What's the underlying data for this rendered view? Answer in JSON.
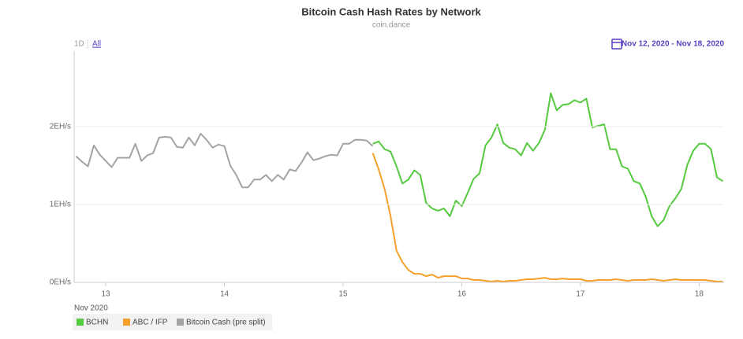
{
  "chart_data": {
    "type": "line",
    "title": "Bitcoin Cash Hash Rates by Network",
    "subtitle": "coin.dance",
    "range_buttons": [
      "1D",
      "All"
    ],
    "date_range": "Nov 12, 2020 - Nov 18, 2020",
    "x_label": "Nov 2020",
    "x": [
      12.75,
      12.8,
      12.85,
      12.9,
      12.95,
      13.0,
      13.05,
      13.1,
      13.15,
      13.2,
      13.25,
      13.3,
      13.35,
      13.4,
      13.45,
      13.5,
      13.55,
      13.6,
      13.65,
      13.7,
      13.75,
      13.8,
      13.85,
      13.9,
      13.95,
      14.0,
      14.05,
      14.1,
      14.15,
      14.2,
      14.25,
      14.3,
      14.35,
      14.4,
      14.45,
      14.5,
      14.55,
      14.6,
      14.65,
      14.7,
      14.75,
      14.8,
      14.85,
      14.9,
      14.95,
      15.0,
      15.05,
      15.1,
      15.15,
      15.2,
      15.25,
      15.3,
      15.35,
      15.4,
      15.45,
      15.5,
      15.55,
      15.6,
      15.65,
      15.7,
      15.75,
      15.8,
      15.85,
      15.9,
      15.95,
      16.0,
      16.05,
      16.1,
      16.15,
      16.2,
      16.25,
      16.3,
      16.35,
      16.4,
      16.45,
      16.5,
      16.55,
      16.6,
      16.65,
      16.7,
      16.75,
      16.8,
      16.85,
      16.9,
      16.95,
      17.0,
      17.05,
      17.1,
      17.15,
      17.2,
      17.25,
      17.3,
      17.35,
      17.4,
      17.45,
      17.5,
      17.55,
      17.6,
      17.65,
      17.7,
      17.75,
      17.8,
      17.85,
      17.9,
      17.95,
      18.0,
      18.05,
      18.1,
      18.15,
      18.2
    ],
    "series": [
      {
        "name": "BCHN",
        "color": "#55c93f",
        "values": [
          null,
          null,
          null,
          null,
          null,
          null,
          null,
          null,
          null,
          null,
          null,
          null,
          null,
          null,
          null,
          null,
          null,
          null,
          null,
          null,
          null,
          null,
          null,
          null,
          null,
          null,
          null,
          null,
          null,
          null,
          null,
          null,
          null,
          null,
          null,
          null,
          null,
          null,
          null,
          null,
          null,
          null,
          null,
          null,
          null,
          null,
          null,
          null,
          null,
          null,
          1.78,
          1.81,
          1.71,
          1.68,
          1.49,
          1.27,
          1.32,
          1.44,
          1.38,
          1.02,
          0.95,
          0.92,
          0.95,
          0.85,
          1.05,
          0.98,
          1.15,
          1.33,
          1.4,
          1.76,
          1.86,
          2.03,
          1.79,
          1.73,
          1.71,
          1.63,
          1.79,
          1.69,
          1.79,
          1.96,
          2.43,
          2.21,
          2.28,
          2.29,
          2.34,
          2.31,
          2.36,
          1.99,
          2.01,
          2.03,
          1.71,
          1.71,
          1.49,
          1.46,
          1.3,
          1.27,
          1.1,
          0.85,
          0.72,
          0.8,
          0.98,
          1.08,
          1.2,
          1.51,
          1.69,
          1.78,
          1.78,
          1.71,
          1.35,
          1.3
        ]
      },
      {
        "name": "ABC / IFP",
        "color": "#f5a02a",
        "values": [
          null,
          null,
          null,
          null,
          null,
          null,
          null,
          null,
          null,
          null,
          null,
          null,
          null,
          null,
          null,
          null,
          null,
          null,
          null,
          null,
          null,
          null,
          null,
          null,
          null,
          null,
          null,
          null,
          null,
          null,
          null,
          null,
          null,
          null,
          null,
          null,
          null,
          null,
          null,
          null,
          null,
          null,
          null,
          null,
          null,
          null,
          null,
          null,
          null,
          null,
          1.66,
          1.45,
          1.2,
          0.85,
          0.41,
          0.26,
          0.16,
          0.11,
          0.11,
          0.08,
          0.1,
          0.06,
          0.08,
          0.08,
          0.08,
          0.05,
          0.05,
          0.03,
          0.03,
          0.02,
          0.01,
          0.02,
          0.01,
          0.02,
          0.02,
          0.03,
          0.04,
          0.04,
          0.05,
          0.06,
          0.04,
          0.04,
          0.05,
          0.04,
          0.04,
          0.04,
          0.02,
          0.02,
          0.03,
          0.03,
          0.03,
          0.04,
          0.03,
          0.02,
          0.03,
          0.03,
          0.03,
          0.04,
          0.03,
          0.02,
          0.03,
          0.04,
          0.03,
          0.03,
          0.03,
          0.03,
          0.03,
          0.02,
          0.01,
          0.01
        ]
      },
      {
        "name": "Bitcoin Cash (pre split)",
        "color": "#a3a3a3",
        "values": [
          1.62,
          1.55,
          1.49,
          1.76,
          1.64,
          1.56,
          1.48,
          1.6,
          1.6,
          1.6,
          1.78,
          1.56,
          1.63,
          1.66,
          1.86,
          1.87,
          1.86,
          1.74,
          1.73,
          1.86,
          1.76,
          1.91,
          1.83,
          1.73,
          1.77,
          1.75,
          1.5,
          1.38,
          1.22,
          1.22,
          1.32,
          1.32,
          1.38,
          1.3,
          1.38,
          1.32,
          1.45,
          1.43,
          1.54,
          1.67,
          1.57,
          1.59,
          1.62,
          1.64,
          1.63,
          1.78,
          1.78,
          1.83,
          1.83,
          1.82,
          1.75,
          null,
          null,
          null,
          null,
          null,
          null,
          null,
          null,
          null,
          null,
          null,
          null,
          null,
          null,
          null,
          null,
          null,
          null,
          null,
          null,
          null,
          null,
          null,
          null,
          null,
          null,
          null,
          null,
          null,
          null,
          null,
          null,
          null,
          null,
          null,
          null,
          null,
          null,
          null,
          null,
          null,
          null,
          null,
          null,
          null,
          null,
          null,
          null,
          null,
          null,
          null,
          null,
          null,
          null,
          null,
          null,
          null,
          null,
          null
        ]
      }
    ],
    "xlim": [
      12.734,
      18.21
    ],
    "xticks": [
      13,
      14,
      15,
      16,
      17,
      18
    ],
    "ylim": [
      0,
      2.97
    ],
    "yticks": [
      {
        "value": 0,
        "label": "0EH/s"
      },
      {
        "value": 1,
        "label": "1EH/s"
      },
      {
        "value": 2,
        "label": "2EH/s"
      }
    ],
    "grid": true
  }
}
